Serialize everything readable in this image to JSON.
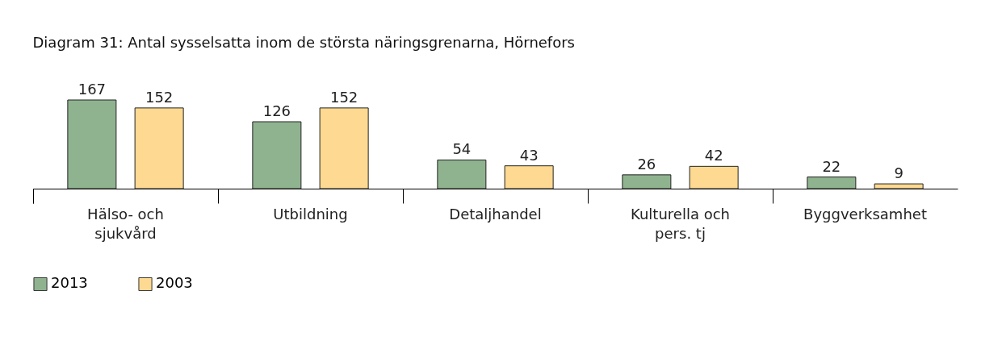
{
  "chart_data": {
    "type": "bar",
    "title": "Diagram 31: Antal sysselsatta inom de största näringsgrenarna, Hörnefors",
    "categories": [
      "Hälso- och sjukvård",
      "Utbildning",
      "Detaljhandel",
      "Kulturella och pers. tj",
      "Byggverksamhet"
    ],
    "series": [
      {
        "name": "2013",
        "color": "#8fb38f",
        "values": [
          167,
          126,
          54,
          26,
          22
        ]
      },
      {
        "name": "2003",
        "color": "#fed991",
        "values": [
          152,
          152,
          43,
          42,
          9
        ]
      }
    ],
    "data_labels": true,
    "legend": "bottom",
    "grid": false,
    "tick_labels": "x"
  }
}
